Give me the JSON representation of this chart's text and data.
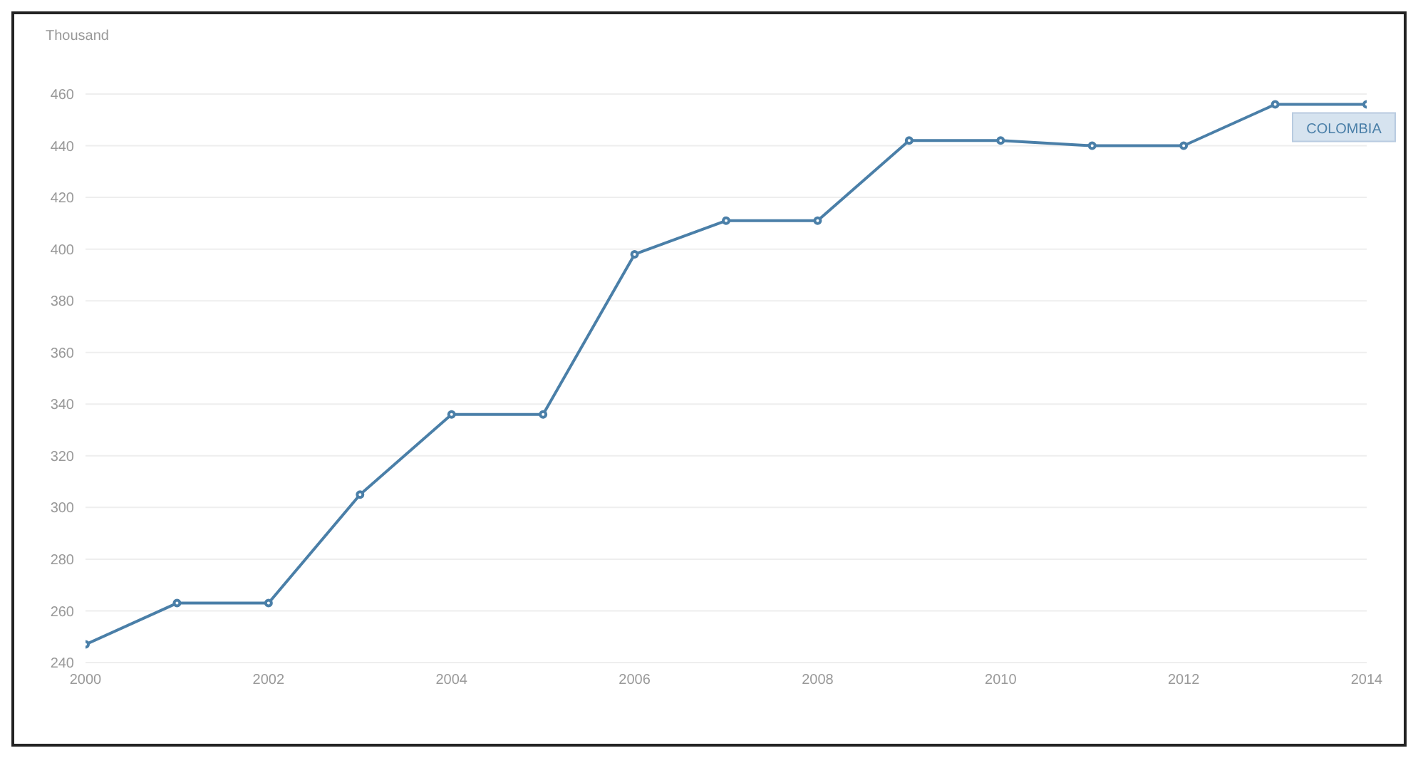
{
  "chart_data": {
    "type": "line",
    "ylabel": "Thousand",
    "x": [
      2000,
      2001,
      2002,
      2003,
      2004,
      2005,
      2006,
      2007,
      2008,
      2009,
      2010,
      2011,
      2012,
      2013,
      2014
    ],
    "series": [
      {
        "name": "COLOMBIA",
        "color": "#4a7fa8",
        "values": [
          247,
          263,
          263,
          305,
          336,
          336,
          398,
          411,
          411,
          442,
          442,
          440,
          440,
          456,
          456
        ]
      }
    ],
    "xlim": [
      2000,
      2014
    ],
    "xticks": [
      2000,
      2002,
      2004,
      2006,
      2008,
      2010,
      2012,
      2014
    ],
    "ylim": [
      240,
      460
    ],
    "yticks": [
      240,
      260,
      280,
      300,
      320,
      340,
      360,
      380,
      400,
      420,
      440,
      460
    ],
    "grid": "y",
    "marker": "circle",
    "line_style": "solid"
  }
}
